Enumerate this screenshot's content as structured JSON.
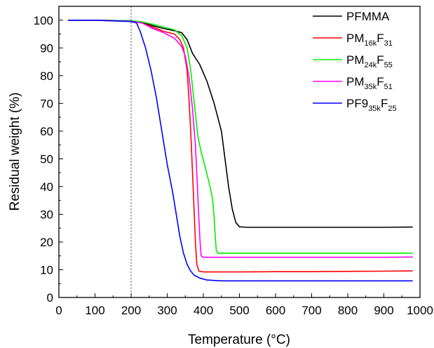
{
  "chart_data": {
    "type": "line",
    "xlabel": "Temperature (°C)",
    "ylabel": "Residual weight (%)",
    "xlim": [
      0,
      1000
    ],
    "ylim": [
      0,
      105
    ],
    "x_ticks": [
      0,
      100,
      200,
      300,
      400,
      500,
      600,
      700,
      800,
      900,
      1000
    ],
    "y_ticks": [
      0,
      10,
      20,
      30,
      40,
      50,
      60,
      70,
      80,
      90,
      100
    ],
    "grid": false,
    "legend_position": "top-right",
    "reference_line": {
      "x": 200,
      "style": "dashed"
    },
    "series": [
      {
        "label_parts": [
          {
            "t": "PFMMA"
          }
        ],
        "color": "#000000",
        "points": [
          [
            25,
            100
          ],
          [
            100,
            100
          ],
          [
            200,
            99.8
          ],
          [
            230,
            99.3
          ],
          [
            260,
            98
          ],
          [
            290,
            97
          ],
          [
            320,
            96.2
          ],
          [
            340,
            95.5
          ],
          [
            355,
            93
          ],
          [
            370,
            88
          ],
          [
            390,
            84
          ],
          [
            410,
            78
          ],
          [
            430,
            70
          ],
          [
            450,
            60
          ],
          [
            460,
            50
          ],
          [
            470,
            40
          ],
          [
            480,
            32
          ],
          [
            490,
            27
          ],
          [
            500,
            25.5
          ],
          [
            520,
            25.3
          ],
          [
            600,
            25.3
          ],
          [
            700,
            25.3
          ],
          [
            800,
            25.3
          ],
          [
            900,
            25.3
          ],
          [
            980,
            25.4
          ]
        ]
      },
      {
        "label_parts": [
          {
            "t": "PM"
          },
          {
            "t": "16k",
            "sub": true
          },
          {
            "t": "F"
          },
          {
            "t": "31",
            "sub": true
          }
        ],
        "color": "#ff0000",
        "points": [
          [
            25,
            100
          ],
          [
            100,
            100
          ],
          [
            200,
            99.6
          ],
          [
            230,
            99
          ],
          [
            260,
            97.5
          ],
          [
            290,
            96
          ],
          [
            320,
            95
          ],
          [
            335,
            93
          ],
          [
            345,
            90
          ],
          [
            355,
            82
          ],
          [
            360,
            72
          ],
          [
            365,
            60
          ],
          [
            370,
            45
          ],
          [
            375,
            30
          ],
          [
            378,
            20
          ],
          [
            382,
            12
          ],
          [
            388,
            9.5
          ],
          [
            400,
            9.2
          ],
          [
            500,
            9.2
          ],
          [
            600,
            9.3
          ],
          [
            700,
            9.3
          ],
          [
            800,
            9.4
          ],
          [
            900,
            9.5
          ],
          [
            980,
            9.6
          ]
        ]
      },
      {
        "label_parts": [
          {
            "t": "PM"
          },
          {
            "t": "24k",
            "sub": true
          },
          {
            "t": "F"
          },
          {
            "t": "55",
            "sub": true
          }
        ],
        "color": "#00ee00",
        "points": [
          [
            25,
            100
          ],
          [
            100,
            100
          ],
          [
            200,
            99.8
          ],
          [
            230,
            99.4
          ],
          [
            260,
            98.5
          ],
          [
            290,
            97.5
          ],
          [
            320,
            96.5
          ],
          [
            340,
            94.5
          ],
          [
            355,
            90
          ],
          [
            365,
            82
          ],
          [
            375,
            70
          ],
          [
            385,
            58
          ],
          [
            395,
            52
          ],
          [
            405,
            47
          ],
          [
            415,
            42
          ],
          [
            425,
            36
          ],
          [
            430,
            29
          ],
          [
            433,
            22
          ],
          [
            436,
            17
          ],
          [
            440,
            16
          ],
          [
            500,
            16
          ],
          [
            600,
            16
          ],
          [
            700,
            16
          ],
          [
            800,
            16
          ],
          [
            900,
            16
          ],
          [
            980,
            16
          ]
        ]
      },
      {
        "label_parts": [
          {
            "t": "PM"
          },
          {
            "t": "35k",
            "sub": true
          },
          {
            "t": "F"
          },
          {
            "t": "51",
            "sub": true
          }
        ],
        "color": "#ff00ff",
        "points": [
          [
            25,
            100
          ],
          [
            100,
            100
          ],
          [
            200,
            99.6
          ],
          [
            230,
            99
          ],
          [
            260,
            97
          ],
          [
            290,
            95.5
          ],
          [
            320,
            93.5
          ],
          [
            340,
            90.5
          ],
          [
            350,
            87
          ],
          [
            360,
            80
          ],
          [
            370,
            68
          ],
          [
            378,
            55
          ],
          [
            383,
            42
          ],
          [
            387,
            30
          ],
          [
            391,
            20
          ],
          [
            394,
            15
          ],
          [
            400,
            14.5
          ],
          [
            500,
            14.5
          ],
          [
            600,
            14.5
          ],
          [
            700,
            14.5
          ],
          [
            800,
            14.5
          ],
          [
            900,
            14.5
          ],
          [
            980,
            14.6
          ]
        ]
      },
      {
        "label_parts": [
          {
            "t": "PF9"
          },
          {
            "t": "35k",
            "sub": true
          },
          {
            "t": "F"
          },
          {
            "t": "25",
            "sub": true
          }
        ],
        "color": "#0000ff",
        "points": [
          [
            25,
            100
          ],
          [
            100,
            100
          ],
          [
            200,
            99.5
          ],
          [
            215,
            99
          ],
          [
            225,
            96
          ],
          [
            240,
            90
          ],
          [
            255,
            82
          ],
          [
            270,
            72
          ],
          [
            285,
            60
          ],
          [
            300,
            48
          ],
          [
            315,
            38
          ],
          [
            325,
            30
          ],
          [
            335,
            22
          ],
          [
            345,
            16
          ],
          [
            355,
            12
          ],
          [
            365,
            9.5
          ],
          [
            375,
            8
          ],
          [
            390,
            7
          ],
          [
            410,
            6.3
          ],
          [
            450,
            6
          ],
          [
            500,
            6
          ],
          [
            600,
            6
          ],
          [
            700,
            6
          ],
          [
            800,
            6
          ],
          [
            900,
            6
          ],
          [
            980,
            6
          ]
        ]
      }
    ]
  }
}
